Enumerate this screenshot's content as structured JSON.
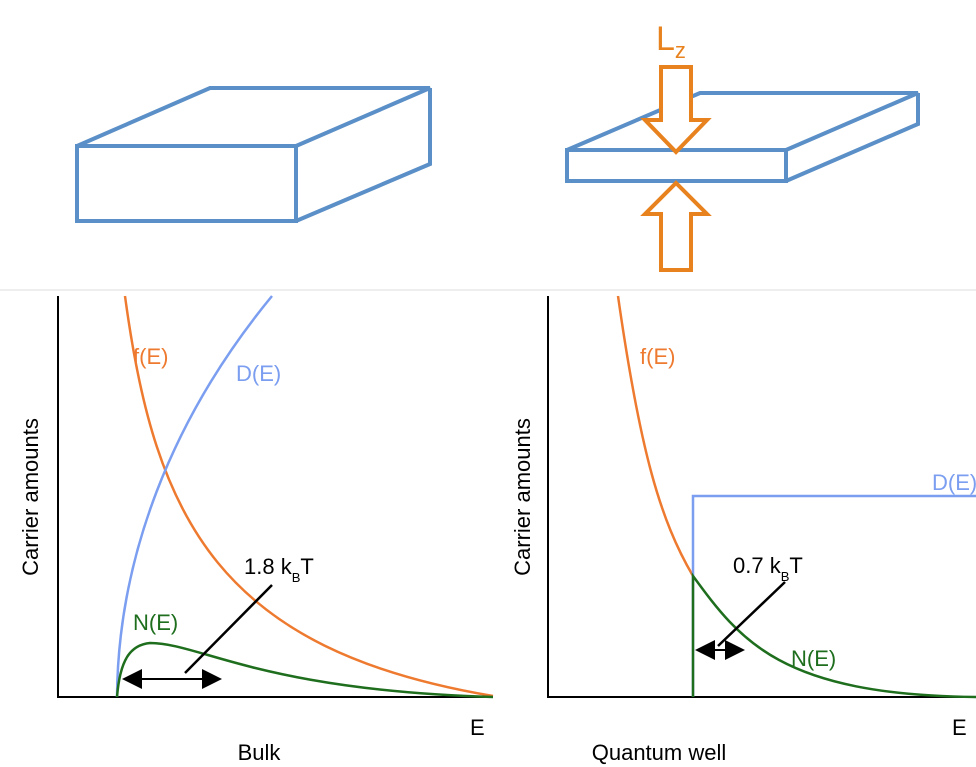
{
  "top": {
    "confinement_label": {
      "main": "L",
      "sub": "z"
    }
  },
  "panels": [
    {
      "y_label": "Carrier amounts",
      "f_label": "f(E)",
      "d_label": "D(E)",
      "n_label": "N(E)",
      "width_label": {
        "main": "1.8 k",
        "sub": "B",
        "tail": "T"
      },
      "x_label": "E",
      "caption": "Bulk"
    },
    {
      "y_label": "Carrier amounts",
      "f_label": "f(E)",
      "d_label": "D(E)",
      "n_label": "N(E)",
      "width_label": {
        "main": "0.7 k",
        "sub": "B",
        "tail": "T"
      },
      "x_label": "E",
      "caption": "Quantum well"
    }
  ]
}
